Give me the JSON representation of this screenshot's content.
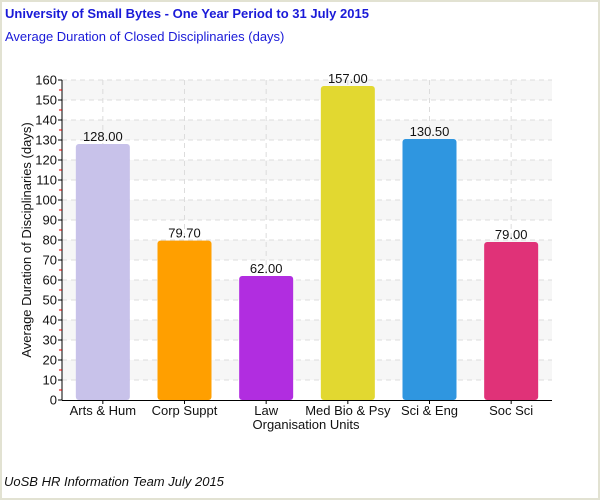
{
  "header": {
    "title": "University of Small Bytes - One Year Period to 31 July 2015",
    "subtitle": "Average Duration of Closed Disciplinaries (days)"
  },
  "footer": {
    "credit": "UoSB HR Information Team July 2015"
  },
  "chart_data": {
    "type": "bar",
    "title": "University of Small Bytes - One Year Period to 31 July 2015",
    "subtitle": "Average Duration of Closed Disciplinaries (days)",
    "xlabel": "Organisation Units",
    "ylabel": "Average Duration of Disciplinaries (days)",
    "ylim": [
      0,
      160
    ],
    "yticks": [
      0,
      10,
      20,
      30,
      40,
      50,
      60,
      70,
      80,
      90,
      100,
      110,
      120,
      130,
      140,
      150,
      160
    ],
    "grid": true,
    "categories": [
      "Arts & Hum",
      "Corp Suppt",
      "Law",
      "Med Bio & Psy",
      "Sci & Eng",
      "Soc Sci"
    ],
    "values": [
      128.0,
      79.7,
      62.0,
      157.0,
      130.5,
      79.0
    ],
    "data_labels": [
      "128.00",
      "79.70",
      "62.00",
      "157.00",
      "130.50",
      "79.00"
    ],
    "colors": [
      "#c8c2ea",
      "#ff9f00",
      "#b12de0",
      "#e2d830",
      "#2f96e0",
      "#e03278"
    ]
  }
}
